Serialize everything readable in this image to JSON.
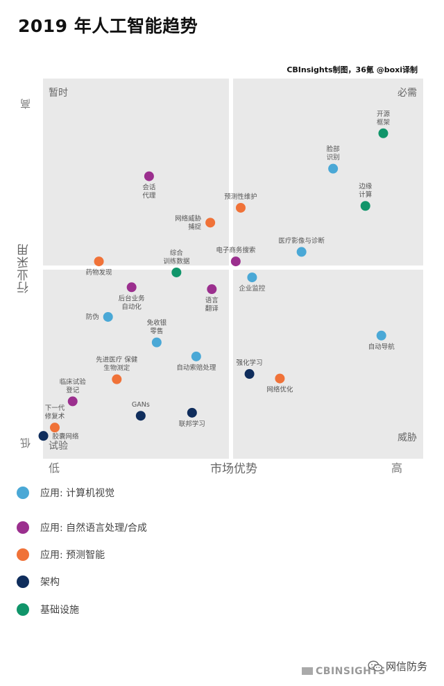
{
  "title": "2019 年人工智能趋势",
  "credit": "CBInsights制图，36氪 @boxi译制",
  "colors": {
    "cv": "#4aa8d6",
    "nlp": "#9b2f8e",
    "predict": "#f07238",
    "arch": "#0f2d5c",
    "infra": "#10956a",
    "quad": "#e9e9e9"
  },
  "axes": {
    "y_label": "行业采用",
    "y_high": "高",
    "y_low": "低",
    "x_label": "市场优势",
    "x_low": "低",
    "x_high": "高"
  },
  "quadrants": {
    "top_left": "暂时",
    "top_right": "必需",
    "bottom_left": "试验",
    "bottom_right": "威胁"
  },
  "legend": [
    {
      "key": "cv",
      "label": "应用: 计算机视觉"
    },
    {
      "key": "nlp",
      "label": "应用: 自然语言处理/合成"
    },
    {
      "key": "predict",
      "label": "应用: 预测智能"
    },
    {
      "key": "arch",
      "label": "架构"
    },
    {
      "key": "infra",
      "label": "基础设施"
    }
  ],
  "chart_data": {
    "type": "scatter",
    "title": "2019 年人工智能趋势",
    "xlabel": "市场优势",
    "ylabel": "行业采用",
    "xlim": [
      0,
      100
    ],
    "ylim": [
      0,
      100
    ],
    "grid": false,
    "legend_position": "bottom",
    "points": [
      {
        "label": [
          "开源",
          "框架"
        ],
        "x": 89.5,
        "y": 85.6,
        "cat": "infra",
        "lp": "above"
      },
      {
        "label": [
          "脸部",
          "识别"
        ],
        "x": 76.3,
        "y": 76.3,
        "cat": "cv",
        "lp": "above"
      },
      {
        "label": [
          "边缘",
          "计算"
        ],
        "x": 84.8,
        "y": 66.5,
        "cat": "infra",
        "lp": "above"
      },
      {
        "label": [
          "会话",
          "代理"
        ],
        "x": 27.9,
        "y": 74.3,
        "cat": "nlp",
        "lp": "below"
      },
      {
        "label": [
          "预测性维护"
        ],
        "x": 52.0,
        "y": 66.0,
        "cat": "predict",
        "lp": "above"
      },
      {
        "label": [
          "网络威胁",
          "捕捉"
        ],
        "x": 44.0,
        "y": 62.1,
        "cat": "predict",
        "lp": "left"
      },
      {
        "label": [
          "医疗影像与诊断"
        ],
        "x": 68.0,
        "y": 54.4,
        "cat": "cv",
        "lp": "above"
      },
      {
        "label": [
          "电子商务搜索"
        ],
        "x": 50.7,
        "y": 51.9,
        "cat": "nlp",
        "lp": "above"
      },
      {
        "label": [
          "综合",
          "训练数据"
        ],
        "x": 35.1,
        "y": 49.0,
        "cat": "infra",
        "lp": "above"
      },
      {
        "label": [
          "药物发现"
        ],
        "x": 14.7,
        "y": 51.9,
        "cat": "predict",
        "lp": "below"
      },
      {
        "label": [
          "企业监控"
        ],
        "x": 55.0,
        "y": 47.7,
        "cat": "cv",
        "lp": "below"
      },
      {
        "label": [
          "后台业务",
          "自动化"
        ],
        "x": 23.3,
        "y": 45.1,
        "cat": "nlp",
        "lp": "below"
      },
      {
        "label": [
          "语言",
          "翻译"
        ],
        "x": 44.4,
        "y": 44.6,
        "cat": "nlp",
        "lp": "below"
      },
      {
        "label": [
          "防伪"
        ],
        "x": 17.1,
        "y": 37.3,
        "cat": "cv",
        "lp": "left"
      },
      {
        "label": [
          "免收银",
          "零售"
        ],
        "x": 29.9,
        "y": 30.6,
        "cat": "cv",
        "lp": "above"
      },
      {
        "label": [
          "自动索赔处理"
        ],
        "x": 40.3,
        "y": 26.9,
        "cat": "cv",
        "lp": "below"
      },
      {
        "label": [
          "自动导航"
        ],
        "x": 89.0,
        "y": 32.4,
        "cat": "cv",
        "lp": "below"
      },
      {
        "label": [
          "强化学习"
        ],
        "x": 54.3,
        "y": 22.3,
        "cat": "arch",
        "lp": "above"
      },
      {
        "label": [
          "网络优化"
        ],
        "x": 62.3,
        "y": 21.1,
        "cat": "predict",
        "lp": "below"
      },
      {
        "label": [
          "先进医疗 保健",
          "生物测定"
        ],
        "x": 19.4,
        "y": 20.9,
        "cat": "predict",
        "lp": "above"
      },
      {
        "label": [
          "临床试验",
          "登记"
        ],
        "x": 7.8,
        "y": 15.1,
        "cat": "nlp",
        "lp": "above"
      },
      {
        "label": [
          "GANs"
        ],
        "x": 25.7,
        "y": 11.3,
        "cat": "arch",
        "lp": "above"
      },
      {
        "label": [
          "联邦学习"
        ],
        "x": 39.2,
        "y": 12.1,
        "cat": "arch",
        "lp": "below"
      },
      {
        "label": [
          "下一代",
          "修复术"
        ],
        "x": 3.1,
        "y": 8.2,
        "cat": "predict",
        "lp": "above"
      },
      {
        "label": [
          "胶囊网络"
        ],
        "x": 0.1,
        "y": 6.0,
        "cat": "arch",
        "lp": "right"
      }
    ]
  },
  "footer": {
    "brand": "CBINSIGHTS",
    "wechat": "网信防务"
  }
}
